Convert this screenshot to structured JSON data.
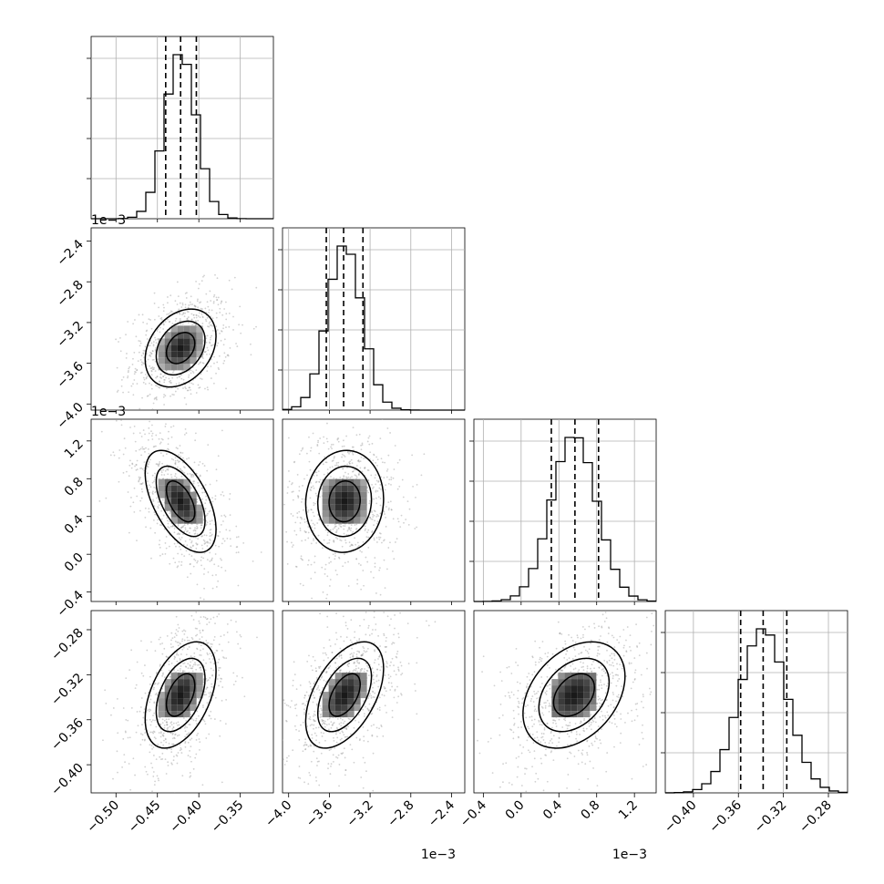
{
  "chart_data": {
    "type": "corner",
    "n_params": 4,
    "params": [
      {
        "range": [
          -0.53,
          -0.31
        ],
        "ticks": [
          -0.5,
          -0.45,
          -0.4,
          -0.35
        ],
        "tick_labels": [
          "−0.50",
          "−0.45",
          "−0.40",
          "−0.35"
        ],
        "offset": "",
        "mean": -0.422,
        "sd": 0.019,
        "quantiles": [
          -0.44,
          -0.422,
          -0.403
        ]
      },
      {
        "range": [
          -4.06,
          -2.27
        ],
        "ticks": [
          -4.0,
          -3.6,
          -3.2,
          -2.8,
          -2.4
        ],
        "tick_labels": [
          "−4.0",
          "−3.6",
          "−3.2",
          "−2.8",
          "−2.4"
        ],
        "offset": "1e−3",
        "mean": -3.45,
        "sd": 0.17,
        "quantiles": [
          -3.63,
          -3.46,
          -3.27
        ]
      },
      {
        "range": [
          -0.5,
          1.43
        ],
        "ticks": [
          -0.4,
          0.0,
          0.4,
          0.8,
          1.2
        ],
        "tick_labels": [
          "−0.4",
          "0.0",
          "0.4",
          "0.8",
          "1.2"
        ],
        "offset": "1e−3",
        "mean": 0.56,
        "sd": 0.24,
        "quantiles": [
          0.32,
          0.57,
          0.82
        ]
      },
      {
        "range": [
          -0.425,
          -0.263
        ],
        "ticks": [
          -0.4,
          -0.36,
          -0.32,
          -0.28
        ],
        "tick_labels": [
          "−0.40",
          "−0.36",
          "−0.32",
          "−0.28"
        ],
        "offset": "",
        "mean": -0.338,
        "sd": 0.021,
        "quantiles": [
          -0.358,
          -0.338,
          -0.317
        ]
      }
    ],
    "y_tick_labels_rows": [
      [],
      [
        "−2.4",
        "−2.8",
        "−3.2",
        "−3.6",
        "−4.0"
      ],
      [
        "1.2",
        "0.8",
        "0.4",
        "0.0",
        "−0.4"
      ],
      [
        "−0.28",
        "−0.32",
        "−0.36",
        "−0.40"
      ]
    ],
    "correlations": [
      [
        1,
        0.3,
        -0.55,
        0.45
      ],
      [
        0.3,
        1,
        0.05,
        0.5
      ],
      [
        -0.55,
        0.05,
        1,
        0.35
      ],
      [
        0.45,
        0.5,
        0.35,
        1
      ]
    ],
    "grid": true,
    "title": "",
    "legend": false
  }
}
